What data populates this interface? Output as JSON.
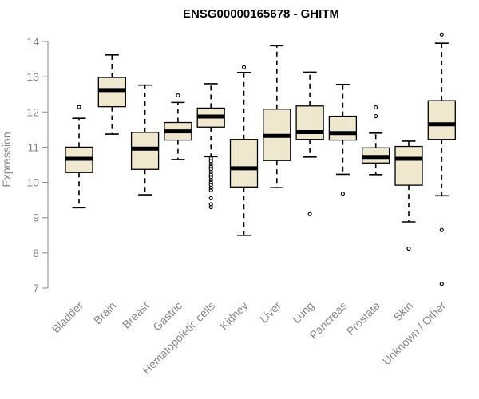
{
  "chart_data": {
    "type": "boxplot",
    "title": "ENSG00000165678 - GHITM",
    "xlabel": "",
    "ylabel": "Expression",
    "ylim": [
      7,
      14
    ],
    "yticks": [
      7,
      8,
      9,
      10,
      11,
      12,
      13,
      14
    ],
    "grid": false,
    "box_fill": "#efe8cf",
    "box_stroke": "#000000",
    "categories": [
      "Bladder",
      "Brain",
      "Breast",
      "Gastric",
      "Hematopoietic cells",
      "Kidney",
      "Liver",
      "Lung",
      "Pancreas",
      "Prostate",
      "Skin",
      "Unknown / Other"
    ],
    "boxes": [
      {
        "whislo": 9.28,
        "q1": 10.28,
        "med": 10.67,
        "q3": 11.0,
        "whishi": 11.82,
        "fliers": [
          12.14
        ]
      },
      {
        "whislo": 11.37,
        "q1": 12.15,
        "med": 12.62,
        "q3": 12.98,
        "whishi": 13.62,
        "fliers": []
      },
      {
        "whislo": 9.65,
        "q1": 10.37,
        "med": 10.96,
        "q3": 11.42,
        "whishi": 12.76,
        "fliers": []
      },
      {
        "whislo": 10.65,
        "q1": 11.2,
        "med": 11.45,
        "q3": 11.7,
        "whishi": 12.27,
        "fliers": [
          12.47
        ]
      },
      {
        "whislo": 10.73,
        "q1": 11.57,
        "med": 11.87,
        "q3": 12.11,
        "whishi": 12.8,
        "fliers": [
          10.68,
          10.6,
          10.52,
          10.45,
          10.38,
          10.3,
          10.22,
          10.15,
          10.07,
          10.0,
          9.93,
          9.85,
          9.78,
          9.55,
          9.38,
          9.3
        ]
      },
      {
        "whislo": 8.5,
        "q1": 9.87,
        "med": 10.4,
        "q3": 11.22,
        "whishi": 13.12,
        "fliers": [
          13.27
        ]
      },
      {
        "whislo": 9.85,
        "q1": 10.62,
        "med": 11.32,
        "q3": 12.08,
        "whishi": 13.88,
        "fliers": []
      },
      {
        "whislo": 10.72,
        "q1": 11.22,
        "med": 11.43,
        "q3": 12.17,
        "whishi": 13.13,
        "fliers": [
          9.1
        ]
      },
      {
        "whislo": 10.23,
        "q1": 11.2,
        "med": 11.4,
        "q3": 11.88,
        "whishi": 12.78,
        "fliers": [
          9.68
        ]
      },
      {
        "whislo": 10.22,
        "q1": 10.55,
        "med": 10.72,
        "q3": 10.98,
        "whishi": 11.4,
        "fliers": [
          12.13,
          11.88
        ]
      },
      {
        "whislo": 8.88,
        "q1": 9.92,
        "med": 10.67,
        "q3": 11.02,
        "whishi": 11.17,
        "fliers": [
          8.12
        ]
      },
      {
        "whislo": 9.62,
        "q1": 11.22,
        "med": 11.65,
        "q3": 12.32,
        "whishi": 13.95,
        "fliers": [
          14.2,
          8.65,
          7.12
        ]
      }
    ]
  }
}
